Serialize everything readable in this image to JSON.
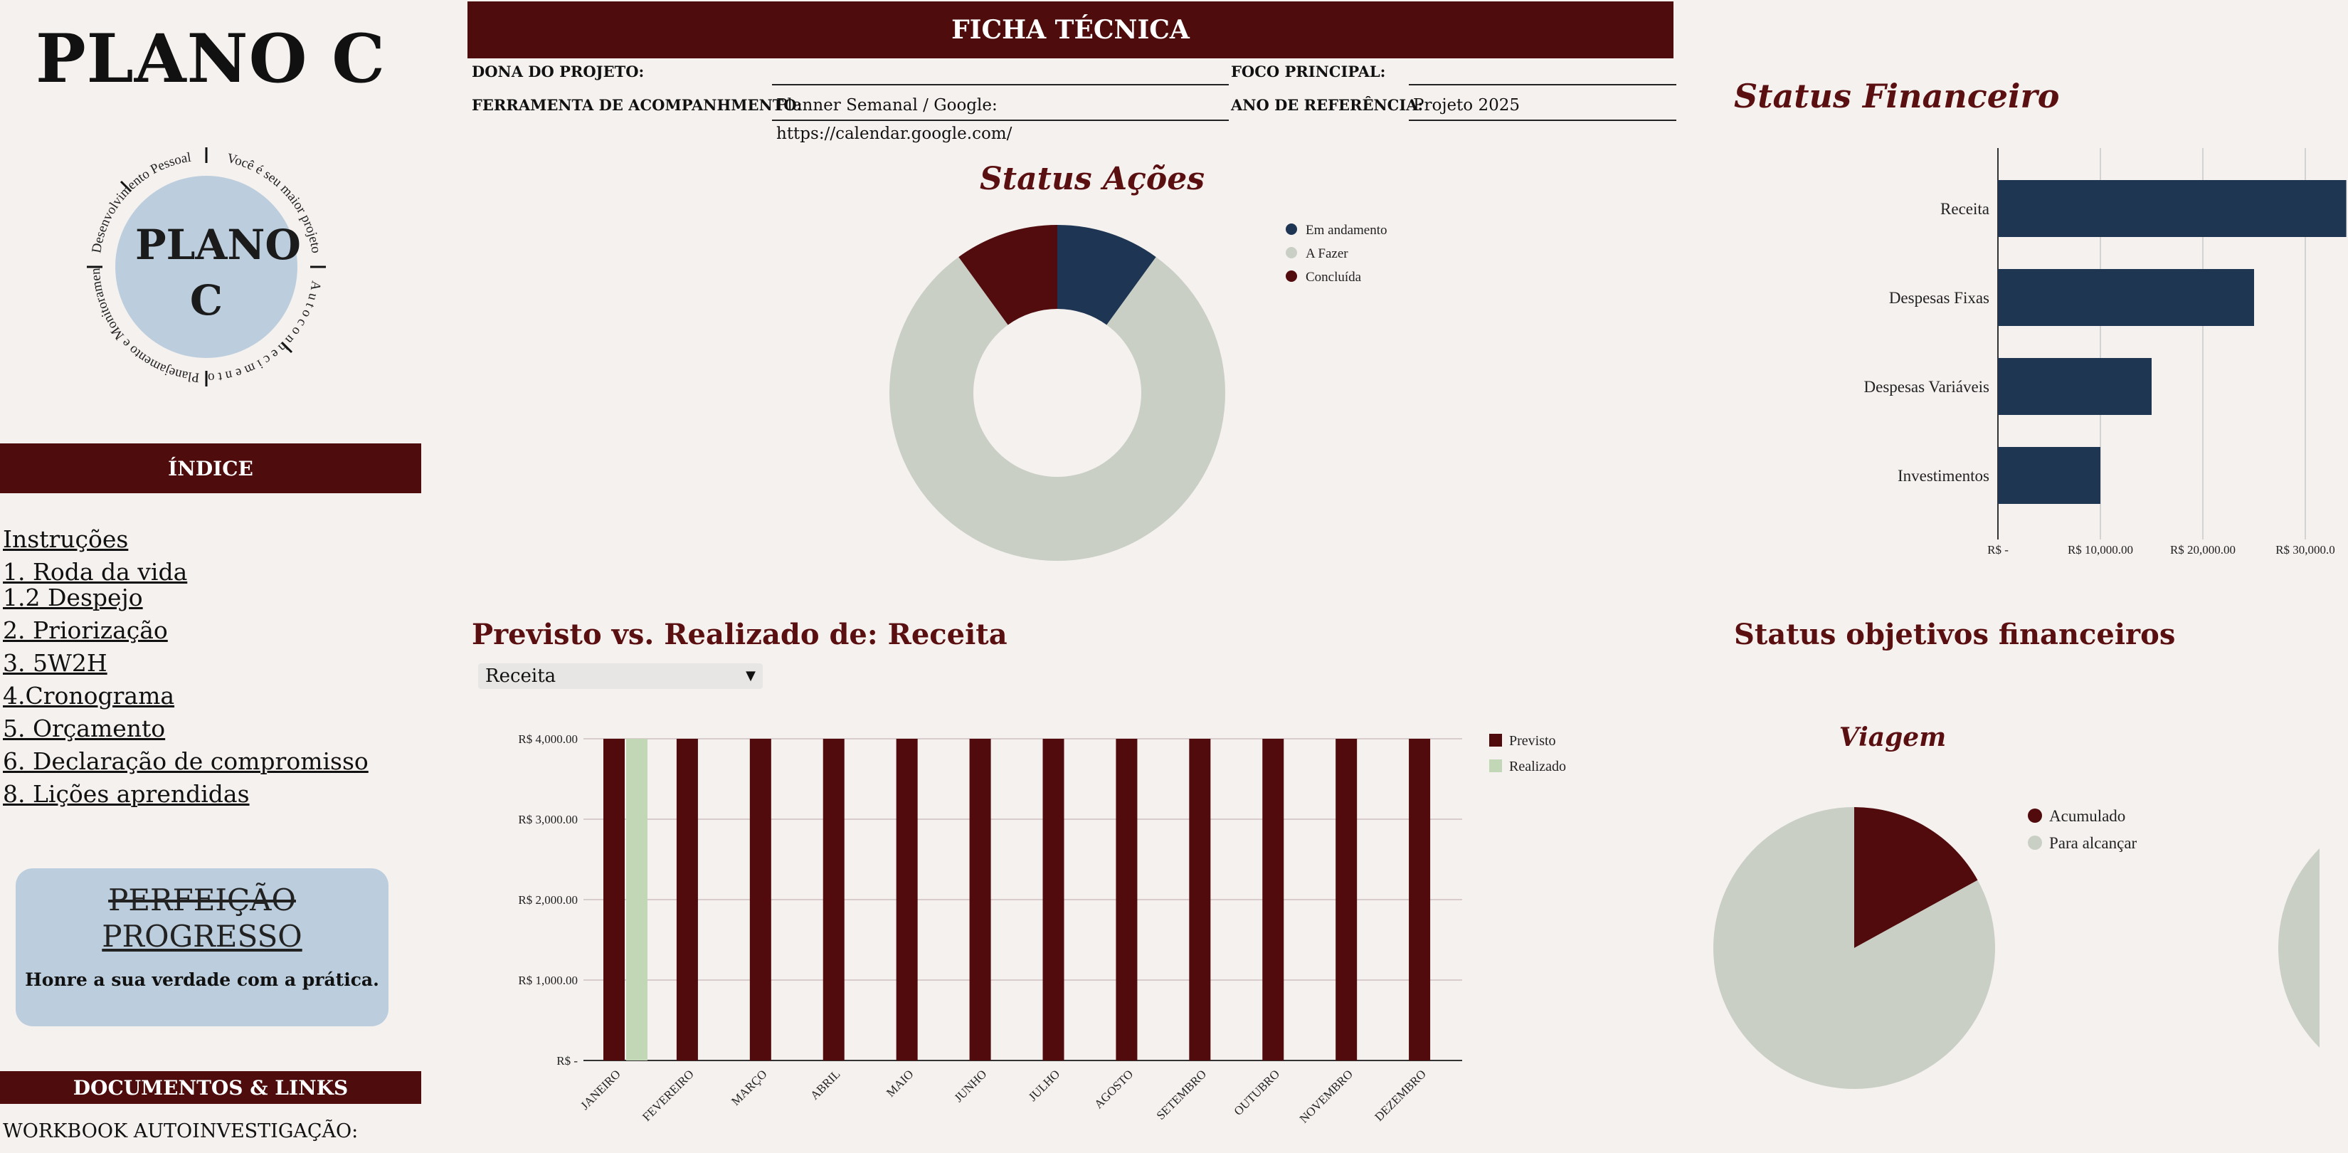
{
  "sidebar": {
    "brand_title": "PLANO C",
    "logo": {
      "inner": "PLANO C",
      "ring_text_1": "Desenvolvimento Pessoal",
      "ring_text_2": "Você é seu maior projeto",
      "ring_text_3": "A u t o c o n h e c i m e n t o",
      "ring_text_4": "Planejamento e Monitoramento"
    },
    "index_header": "ÍNDICE",
    "index_items": [
      "Instruções",
      "1. Roda da vida",
      "1.2 Despejo",
      "2. Priorização",
      "3. 5W2H",
      "4.Cronograma",
      "5. Orçamento",
      "6. Declaração de compromisso",
      "8. Lições aprendidas"
    ],
    "quote": {
      "struck": "PERFEIÇÃO",
      "main": "PROGRESSO",
      "sub": "Honre a sua verdade com a prática."
    },
    "docs_header": "DOCUMENTOS & LINKS",
    "docs_first": "WORKBOOK AUTOINVESTIGAÇÃO:"
  },
  "ficha": {
    "title": "FICHA TÉCNICA",
    "dona_label": "DONA DO PROJETO:",
    "dona_value": "",
    "foco_label": "FOCO PRINCIPAL:",
    "foco_value": "",
    "ferramenta_label": "FERRAMENTA DE ACOMPANHMENTO:",
    "ferramenta_value": "Planner Semanal / Google: https://calendar.google.com/",
    "ano_label": "ANO DE REFERÊNCIA:",
    "ano_value": "Projeto 2025"
  },
  "status_acoes": {
    "title": "Status Ações",
    "colors": {
      "em_andamento": "#1e3653",
      "a_fazer": "#c9cfc4",
      "concluida": "#520c0e"
    },
    "chart_data": {
      "type": "pie",
      "donut": true,
      "labels": [
        "Em andamento",
        "A Fazer",
        "Concluída"
      ],
      "values": [
        1,
        8,
        1
      ],
      "legend": "right"
    }
  },
  "status_financeiro": {
    "title": "Status Financeiro",
    "color": "#1f3652",
    "chart_data": {
      "type": "bar",
      "orientation": "horizontal",
      "categories": [
        "Receita",
        "Despesas Fixas",
        "Despesas Variáveis",
        "Investimentos"
      ],
      "values": [
        34000,
        25000,
        15000,
        10000
      ],
      "xlim": [
        0,
        34000
      ],
      "ticks": [
        0,
        10000,
        20000,
        30000
      ],
      "tick_labels": [
        "R$ -",
        "R$ 10,000.00",
        "R$ 20,000.00",
        "R$ 30,000.0"
      ]
    }
  },
  "previsto": {
    "title": "Previsto vs. Realizado de: Receita",
    "dropdown_value": "Receita",
    "colors": {
      "previsto": "#510b0d",
      "realizado": "#c1d7b6"
    },
    "chart_data": {
      "type": "bar",
      "categories": [
        "JANEIRO",
        "FEVEREIRO",
        "MARÇO",
        "ABRIL",
        "MAIO",
        "JUNHO",
        "JULHO",
        "AGOSTO",
        "SETEMBRO",
        "OUTUBRO",
        "NOVEMBRO",
        "DEZEMBRO"
      ],
      "series": [
        {
          "name": "Previsto",
          "values": [
            4000,
            4000,
            4000,
            4000,
            4000,
            4000,
            4000,
            4000,
            4000,
            4000,
            4000,
            4000
          ]
        },
        {
          "name": "Realizado",
          "values": [
            4000,
            0,
            0,
            0,
            0,
            0,
            0,
            0,
            0,
            0,
            0,
            0
          ]
        }
      ],
      "ylim": [
        0,
        4000
      ],
      "ticks": [
        0,
        1000,
        2000,
        3000,
        4000
      ],
      "tick_labels": [
        "R$ -",
        "R$ 1,000.00",
        "R$ 2,000.00",
        "R$ 3,000.00",
        "R$ 4,000.00"
      ],
      "legend": "right",
      "grid": true
    }
  },
  "objetivos": {
    "title": "Status objetivos financeiros",
    "sub_title": "Viagem",
    "colors": {
      "acumulado": "#510b0d",
      "para_alcancar": "#c9cfc4"
    },
    "chart_data": {
      "type": "pie",
      "labels": [
        "Acumulado",
        "Para alcançar"
      ],
      "values": [
        17,
        83
      ],
      "legend": "right"
    }
  }
}
